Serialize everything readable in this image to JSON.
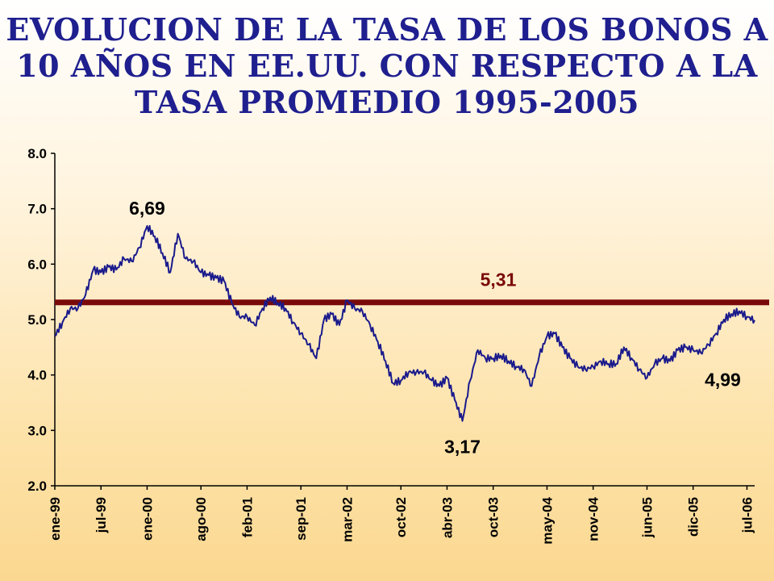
{
  "title_lines": [
    "EVOLUCION DE LA TASA DE LOS BONOS A",
    "10 AÑOS EN EE.UU. CON RESPECTO A LA",
    "TASA PROMEDIO 1995-2005"
  ],
  "colors": {
    "title": "#1f1f8f",
    "series": "#1a1a8c",
    "average": "#7a0a0a"
  },
  "chart_data": {
    "type": "line",
    "ylim": [
      2.0,
      8.0
    ],
    "yticks": [
      {
        "v": 2.0,
        "label": "2.0"
      },
      {
        "v": 3.0,
        "label": "3.0"
      },
      {
        "v": 4.0,
        "label": "4.0"
      },
      {
        "v": 5.0,
        "label": "5.0"
      },
      {
        "v": 6.0,
        "label": "6.0"
      },
      {
        "v": 7.0,
        "label": "7.0"
      },
      {
        "v": 8.0,
        "label": "8.0"
      }
    ],
    "xlim": [
      "1999-01",
      "2006-08"
    ],
    "xticks": [
      {
        "x": "1999-01",
        "label": "ene-99"
      },
      {
        "x": "1999-07",
        "label": "jul-99"
      },
      {
        "x": "2000-01",
        "label": "ene-00"
      },
      {
        "x": "2000-08",
        "label": "ago-00"
      },
      {
        "x": "2001-02",
        "label": "feb-01"
      },
      {
        "x": "2001-09",
        "label": "sep-01"
      },
      {
        "x": "2002-03",
        "label": "mar-02"
      },
      {
        "x": "2002-10",
        "label": "oct-02"
      },
      {
        "x": "2003-04",
        "label": "abr-03"
      },
      {
        "x": "2003-10",
        "label": "oct-03"
      },
      {
        "x": "2004-05",
        "label": "may-04"
      },
      {
        "x": "2004-11",
        "label": "nov-04"
      },
      {
        "x": "2005-06",
        "label": "jun-05"
      },
      {
        "x": "2005-12",
        "label": "dic-05"
      },
      {
        "x": "2006-07",
        "label": "jul-06"
      }
    ],
    "series": [
      {
        "points": [
          [
            "1999-01",
            4.7
          ],
          [
            "1999-02",
            4.95
          ],
          [
            "1999-03",
            5.2
          ],
          [
            "1999-04",
            5.2
          ],
          [
            "1999-05",
            5.45
          ],
          [
            "1999-06",
            5.9
          ],
          [
            "1999-07",
            5.85
          ],
          [
            "1999-08",
            5.95
          ],
          [
            "1999-09",
            5.9
          ],
          [
            "1999-10",
            6.1
          ],
          [
            "1999-11",
            6.05
          ],
          [
            "1999-12",
            6.3
          ],
          [
            "2000-01",
            6.69
          ],
          [
            "2000-02",
            6.5
          ],
          [
            "2000-03",
            6.2
          ],
          [
            "2000-04",
            5.85
          ],
          [
            "2000-05",
            6.55
          ],
          [
            "2000-06",
            6.1
          ],
          [
            "2000-07",
            6.05
          ],
          [
            "2000-08",
            5.85
          ],
          [
            "2000-09",
            5.8
          ],
          [
            "2000-10",
            5.75
          ],
          [
            "2000-11",
            5.7
          ],
          [
            "2000-12",
            5.3
          ],
          [
            "2001-01",
            5.05
          ],
          [
            "2001-02",
            5.05
          ],
          [
            "2001-03",
            4.9
          ],
          [
            "2001-04",
            5.2
          ],
          [
            "2001-05",
            5.4
          ],
          [
            "2001-06",
            5.3
          ],
          [
            "2001-07",
            5.2
          ],
          [
            "2001-08",
            4.95
          ],
          [
            "2001-09",
            4.75
          ],
          [
            "2001-10",
            4.55
          ],
          [
            "2001-11",
            4.3
          ],
          [
            "2001-12",
            5.0
          ],
          [
            "2002-01",
            5.1
          ],
          [
            "2002-02",
            4.9
          ],
          [
            "2002-03",
            5.35
          ],
          [
            "2002-04",
            5.2
          ],
          [
            "2002-05",
            5.15
          ],
          [
            "2002-06",
            4.9
          ],
          [
            "2002-07",
            4.6
          ],
          [
            "2002-08",
            4.25
          ],
          [
            "2002-09",
            3.85
          ],
          [
            "2002-10",
            3.9
          ],
          [
            "2002-11",
            4.05
          ],
          [
            "2002-12",
            4.05
          ],
          [
            "2003-01",
            4.05
          ],
          [
            "2003-02",
            3.9
          ],
          [
            "2003-03",
            3.8
          ],
          [
            "2003-04",
            3.95
          ],
          [
            "2003-05",
            3.55
          ],
          [
            "2003-06",
            3.17
          ],
          [
            "2003-07",
            3.9
          ],
          [
            "2003-08",
            4.45
          ],
          [
            "2003-09",
            4.3
          ],
          [
            "2003-10",
            4.3
          ],
          [
            "2003-11",
            4.35
          ],
          [
            "2003-12",
            4.25
          ],
          [
            "2004-01",
            4.15
          ],
          [
            "2004-02",
            4.1
          ],
          [
            "2004-03",
            3.8
          ],
          [
            "2004-04",
            4.35
          ],
          [
            "2004-05",
            4.7
          ],
          [
            "2004-06",
            4.75
          ],
          [
            "2004-07",
            4.5
          ],
          [
            "2004-08",
            4.3
          ],
          [
            "2004-09",
            4.15
          ],
          [
            "2004-10",
            4.1
          ],
          [
            "2004-11",
            4.15
          ],
          [
            "2004-12",
            4.25
          ],
          [
            "2005-01",
            4.2
          ],
          [
            "2005-02",
            4.2
          ],
          [
            "2005-03",
            4.5
          ],
          [
            "2005-04",
            4.3
          ],
          [
            "2005-05",
            4.1
          ],
          [
            "2005-06",
            3.95
          ],
          [
            "2005-07",
            4.2
          ],
          [
            "2005-08",
            4.3
          ],
          [
            "2005-09",
            4.25
          ],
          [
            "2005-10",
            4.45
          ],
          [
            "2005-11",
            4.5
          ],
          [
            "2005-12",
            4.45
          ],
          [
            "2006-01",
            4.4
          ],
          [
            "2006-02",
            4.55
          ],
          [
            "2006-03",
            4.75
          ],
          [
            "2006-04",
            5.0
          ],
          [
            "2006-05",
            5.1
          ],
          [
            "2006-06",
            5.15
          ],
          [
            "2006-07",
            5.05
          ],
          [
            "2006-08",
            4.99
          ]
        ]
      }
    ],
    "reference_line": {
      "y": 5.31,
      "label": "5,31"
    },
    "annotations": [
      {
        "text": "6,69",
        "x": "2000-01",
        "y": 6.69,
        "place": "above"
      },
      {
        "text": "3,17",
        "x": "2003-06",
        "y": 3.17,
        "place": "below"
      },
      {
        "text": "4,99",
        "x": "2006-07",
        "y": 4.99,
        "place": "below"
      }
    ],
    "grid": false,
    "legend": "none"
  }
}
